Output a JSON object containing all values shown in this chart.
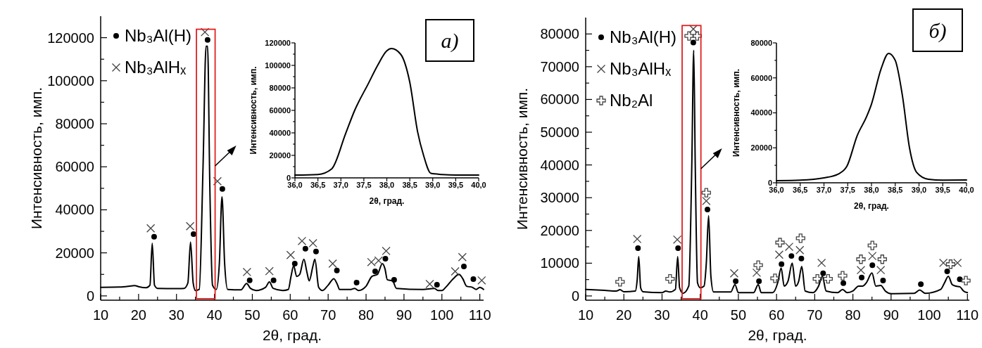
{
  "chart_data": [
    {
      "type": "line",
      "xlabel": "2θ, град.",
      "ylabel": "Интенсивность, имп.",
      "annotations": [
        "а)"
      ],
      "legend": "top left",
      "xlim": [
        10,
        111
      ],
      "ylim": [
        -2000,
        130000
      ],
      "xticks": [
        10,
        {
          "value": 15,
          "label": null
        },
        20,
        {
          "value": 25,
          "label": null
        },
        30,
        {
          "value": 35,
          "label": null
        },
        40,
        {
          "value": 45,
          "label": null
        },
        50,
        {
          "value": 55,
          "label": null
        },
        60,
        {
          "value": 65,
          "label": null
        },
        70,
        {
          "value": 75,
          "label": null
        },
        80,
        {
          "value": 85,
          "label": null
        },
        90,
        {
          "value": 95,
          "label": null
        },
        100,
        {
          "value": 105,
          "label": null
        },
        110
      ],
      "yticks": [
        0,
        {
          "value": 10000,
          "label": null
        },
        20000,
        {
          "value": 30000,
          "label": null
        },
        40000,
        {
          "value": 50000,
          "label": null
        },
        60000,
        {
          "value": 70000,
          "label": null
        },
        80000,
        {
          "value": 90000,
          "label": null
        },
        100000,
        {
          "value": 110000,
          "label": null
        },
        120000
      ],
      "series": [
        {
          "type": "line",
          "color": "#000000",
          "x": [
            10,
            15,
            18,
            19,
            20,
            22,
            23,
            23.6,
            24.2,
            25,
            30,
            32,
            33,
            33.7,
            34.4,
            35,
            36,
            37,
            37.8,
            38.2,
            38.8,
            39.5,
            40.5,
            41.3,
            42,
            42.7,
            43.5,
            47,
            48.5,
            49.5,
            51,
            53.5,
            54.5,
            55.5,
            58,
            59.5,
            60.2,
            60.9,
            61.7,
            62.5,
            63.6,
            64.4,
            65,
            66,
            66.5,
            67.5,
            68.5,
            70,
            71.5,
            72.5,
            73,
            76,
            77,
            78,
            80,
            81.5,
            83,
            84.3,
            85,
            85.6,
            87,
            88,
            95,
            98,
            99,
            100,
            101,
            103,
            104.5,
            105.5,
            106.5,
            108,
            109,
            110,
            111
          ],
          "values": [
            4000,
            4100,
            4600,
            4800,
            4300,
            3800,
            5000,
            24500,
            5000,
            3500,
            3400,
            3500,
            6000,
            25000,
            6000,
            2500,
            3000,
            60000,
            116000,
            116000,
            50000,
            5000,
            3000,
            15000,
            46000,
            15000,
            3000,
            2800,
            5800,
            3500,
            2500,
            4000,
            6500,
            3500,
            2500,
            3000,
            9000,
            14000,
            9000,
            10000,
            17000,
            11000,
            7000,
            14000,
            17000,
            4000,
            2500,
            5000,
            8000,
            5000,
            3000,
            3000,
            3500,
            2500,
            4500,
            9000,
            10000,
            15000,
            12500,
            7500,
            7000,
            3500,
            3000,
            3500,
            2500,
            2500,
            4000,
            8000,
            10000,
            8000,
            4500,
            4000,
            3000,
            4000,
            3000
          ]
        },
        {
          "type": "scatter",
          "name": "Nb₃Al(H)",
          "marker": "circle",
          "color": "#000000",
          "x": [
            24.1,
            34.5,
            38.2,
            42.1,
            49.3,
            55.6,
            61.2,
            64.0,
            66.8,
            72.3,
            77.5,
            82.4,
            85.1,
            87.4,
            98.7,
            105.8,
            108.3
          ],
          "values": [
            27500,
            28700,
            119000,
            49700,
            7200,
            7200,
            15000,
            21900,
            20600,
            11800,
            6200,
            11400,
            17300,
            7500,
            5200,
            13700,
            7800
          ]
        },
        {
          "type": "scatter",
          "name": "Nb₃AlHₓ",
          "marker": "cross",
          "color": "#444444",
          "x": [
            23.2,
            33.6,
            37.5,
            40.8,
            48.6,
            54.5,
            60.1,
            63.1,
            66.0,
            71.2,
            81.4,
            83.3,
            85.3,
            96.8,
            103.5,
            105.4,
            110.5
          ],
          "values": [
            31400,
            32400,
            122600,
            53300,
            11100,
            11500,
            19000,
            25500,
            24500,
            15000,
            15700,
            16400,
            20900,
            5500,
            11400,
            18000,
            7200
          ]
        }
      ]
    },
    {
      "type": "line",
      "xlabel": "2θ, град.",
      "ylabel": "Интенсивность, имп.",
      "xlim": [
        36,
        40
      ],
      "ylim": [
        0,
        120000
      ],
      "xticks": [
        {
          "value": 36,
          "label": "36,0"
        },
        {
          "value": 36.5,
          "label": "36,5"
        },
        {
          "value": 37,
          "label": "37,0"
        },
        {
          "value": 37.5,
          "label": "37,5"
        },
        {
          "value": 38,
          "label": "38,0"
        },
        {
          "value": 38.5,
          "label": "38,5"
        },
        {
          "value": 39,
          "label": "39,0"
        },
        {
          "value": 39.5,
          "label": "39,5"
        },
        {
          "value": 40,
          "label": "40,0"
        }
      ],
      "yticks": [
        0,
        {
          "value": 10000,
          "label": null
        },
        20000,
        {
          "value": 30000,
          "label": null
        },
        40000,
        {
          "value": 50000,
          "label": null
        },
        60000,
        {
          "value": 70000,
          "label": null
        },
        80000,
        {
          "value": 90000,
          "label": null
        },
        100000,
        {
          "value": 110000,
          "label": null
        },
        120000
      ],
      "series": [
        {
          "color": "#000000",
          "x": [
            36,
            36.5,
            36.8,
            37.1,
            37.3,
            37.6,
            37.8,
            38.0,
            38.1,
            38.3,
            38.5,
            38.67,
            38.8,
            38.96,
            39.2,
            39.5,
            40
          ],
          "values": [
            2500,
            3000,
            8000,
            39000,
            60000,
            84000,
            100000,
            113000,
            115000,
            110000,
            85000,
            41000,
            20000,
            4000,
            3000,
            2500,
            2500
          ]
        }
      ]
    },
    {
      "type": "line",
      "xlabel": "2θ, град.",
      "ylabel": "Интенсивность, имп.",
      "annotations": [
        "б)"
      ],
      "legend": "top left",
      "xlim": [
        10,
        110.5
      ],
      "ylim": [
        -1300,
        85000
      ],
      "xticks": [
        10,
        {
          "value": 15,
          "label": null
        },
        20,
        {
          "value": 25,
          "label": null
        },
        30,
        {
          "value": 35,
          "label": null
        },
        40,
        {
          "value": 45,
          "label": null
        },
        50,
        {
          "value": 55,
          "label": null
        },
        60,
        {
          "value": 65,
          "label": null
        },
        70,
        {
          "value": 75,
          "label": null
        },
        80,
        {
          "value": 85,
          "label": null
        },
        90,
        {
          "value": 95,
          "label": null
        },
        100,
        {
          "value": 105,
          "label": null
        },
        110
      ],
      "yticks": [
        0,
        {
          "value": 5000,
          "label": null
        },
        10000,
        {
          "value": 15000,
          "label": null
        },
        20000,
        {
          "value": 25000,
          "label": null
        },
        30000,
        {
          "value": 35000,
          "label": null
        },
        40000,
        {
          "value": 45000,
          "label": null
        },
        50000,
        {
          "value": 55000,
          "label": null
        },
        60000,
        {
          "value": 65000,
          "label": null
        },
        70000,
        {
          "value": 75000,
          "label": null
        },
        80000
      ],
      "series": [
        {
          "type": "line",
          "color": "#000000",
          "x": [
            10,
            15,
            18,
            19,
            20,
            23,
            23.5,
            23.9,
            24.4,
            25,
            30,
            31,
            32,
            33.5,
            34.1,
            34.6,
            35.5,
            37,
            37.8,
            38.3,
            38.7,
            39.3,
            40,
            41,
            41.6,
            42.2,
            42.8,
            43.5,
            48,
            49.1,
            50,
            54,
            55.2,
            56,
            59,
            60.3,
            61.2,
            62,
            63,
            64.1,
            65,
            65.8,
            66.6,
            67.5,
            69.5,
            71,
            72,
            73,
            76,
            77.3,
            78.5,
            80,
            81.5,
            82.5,
            83.5,
            85,
            86,
            87.3,
            88.5,
            90,
            96,
            97.5,
            99,
            103,
            104,
            105,
            106,
            107,
            108,
            109,
            110
          ],
          "values": [
            2000,
            1700,
            1500,
            1900,
            1300,
            1500,
            5000,
            12000,
            2500,
            1300,
            1000,
            1500,
            1200,
            2000,
            12000,
            2500,
            800,
            3000,
            40000,
            75000,
            40000,
            4000,
            2500,
            3000,
            10000,
            24500,
            6000,
            1200,
            1200,
            3500,
            1000,
            1000,
            3500,
            1000,
            1000,
            4000,
            8500,
            3000,
            4500,
            10000,
            3000,
            4500,
            9000,
            1500,
            1000,
            3000,
            6000,
            1500,
            1000,
            2000,
            1000,
            1500,
            3000,
            3000,
            4000,
            7000,
            3000,
            3200,
            1500,
            700,
            800,
            1800,
            800,
            2000,
            4000,
            6000,
            3500,
            3000,
            2800,
            1500,
            1000
          ]
        },
        {
          "type": "scatter",
          "name": "Nb₃Al(H)",
          "marker": "circle",
          "color": "#000000",
          "x": [
            23.7,
            34.2,
            38.2,
            41.9,
            49.3,
            55.4,
            61.3,
            63.9,
            66.5,
            72.2,
            77.5,
            82.3,
            85.1,
            87.9,
            97.8,
            104.7,
            108.0
          ],
          "values": [
            14600,
            14600,
            77400,
            26400,
            4500,
            4500,
            9700,
            12200,
            11400,
            6900,
            3900,
            5600,
            9400,
            4700,
            3600,
            7500,
            5100
          ]
        },
        {
          "type": "scatter",
          "name": "Nb₃AlHₓ",
          "marker": "cross",
          "color": "#444444",
          "x": [
            23.5,
            34.0,
            38.2,
            41.6,
            48.9,
            54.8,
            60.7,
            63.3,
            66.1,
            71.8,
            82.1,
            85.1,
            87.3,
            103.7,
            107.4
          ],
          "values": [
            17400,
            17200,
            81500,
            29000,
            6900,
            7100,
            12600,
            15000,
            14000,
            10100,
            7900,
            12200,
            7900,
            10100,
            10100
          ]
        },
        {
          "type": "scatter",
          "name": "Nb₂Al",
          "marker": "plus",
          "color": "#444444",
          "x": [
            19.0,
            32.1,
            37.1,
            39.2,
            41.6,
            55.2,
            59.6,
            60.9,
            66.3,
            70.7,
            73.5,
            77.3,
            82.1,
            85.1,
            87.7,
            105.6,
            109.6
          ],
          "values": [
            4300,
            5200,
            79400,
            79400,
            31500,
            9400,
            5400,
            16300,
            17600,
            5200,
            5200,
            6200,
            11200,
            15400,
            11200,
            9700,
            4700
          ]
        }
      ]
    },
    {
      "type": "line",
      "xlabel": "2θ, град.",
      "ylabel": "Интенсивность, имп.",
      "xlim": [
        36,
        40
      ],
      "ylim": [
        0,
        80000
      ],
      "xticks": [
        {
          "value": 36,
          "label": "36,0"
        },
        {
          "value": 36.5,
          "label": "36,5"
        },
        {
          "value": 37,
          "label": "37,0"
        },
        {
          "value": 37.5,
          "label": "37,5"
        },
        {
          "value": 38,
          "label": "38,0"
        },
        {
          "value": 38.5,
          "label": "38,5"
        },
        {
          "value": 39,
          "label": "39,0"
        },
        {
          "value": 39.5,
          "label": "39,5"
        },
        {
          "value": 40,
          "label": "40,0"
        }
      ],
      "yticks": [
        0,
        {
          "value": 10000,
          "label": null
        },
        20000,
        {
          "value": 30000,
          "label": null
        },
        40000,
        {
          "value": 50000,
          "label": null
        },
        60000,
        {
          "value": 70000,
          "label": null
        },
        80000
      ],
      "series": [
        {
          "color": "#000000",
          "x": [
            36,
            36.5,
            37,
            37.3,
            37.48,
            37.7,
            37.9,
            38.0,
            38.2,
            38.36,
            38.5,
            38.65,
            38.8,
            38.95,
            39.2,
            39.5,
            40
          ],
          "values": [
            1200,
            1500,
            2800,
            5000,
            9300,
            27000,
            38000,
            45000,
            65000,
            74000,
            70000,
            50000,
            20000,
            6000,
            2000,
            1500,
            1600
          ]
        }
      ]
    }
  ]
}
